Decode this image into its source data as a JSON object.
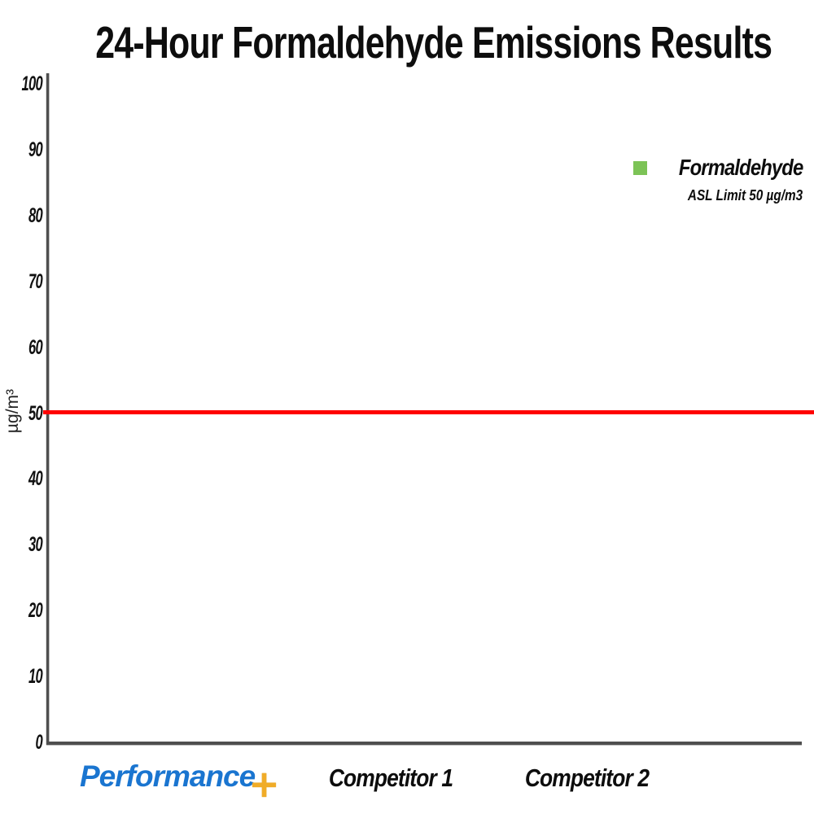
{
  "chart_data": {
    "type": "bar",
    "title": "24-Hour Formaldehyde Emissions Results",
    "ylabel": "µg/m³",
    "ylim": [
      0,
      100
    ],
    "yticks": [
      0,
      10,
      20,
      30,
      40,
      50,
      60,
      70,
      80,
      90,
      100
    ],
    "categories": [
      "Performance+",
      "Competitor 1",
      "Competitor 2"
    ],
    "series": [
      {
        "name": "Formaldehyde",
        "values": [
          0,
          0,
          0
        ],
        "color": "#7cc356",
        "note": "no bars rendered in this frame of the chart"
      }
    ],
    "reference_line": {
      "value": 50,
      "label": "ASL Limit 50 µg/m3",
      "color": "#ff0000"
    },
    "grid": false,
    "legend_position": "upper right"
  },
  "legend": {
    "label": "Formaldehyde",
    "sublabel": "ASL Limit 50 µg/m3",
    "swatch_color": "#7cc356"
  },
  "x_axis": {
    "performance_logo": {
      "text": "Performance",
      "plus": "+"
    },
    "competitor1": "Competitor 1",
    "competitor2": "Competitor 2"
  },
  "colors": {
    "axis": "#4f4f4f",
    "reference_line": "#ff0000",
    "title": "#0d0d0d",
    "logo_blue": "#1a75d0",
    "logo_gold": "#f0ac28",
    "legend_green": "#7cc356"
  }
}
